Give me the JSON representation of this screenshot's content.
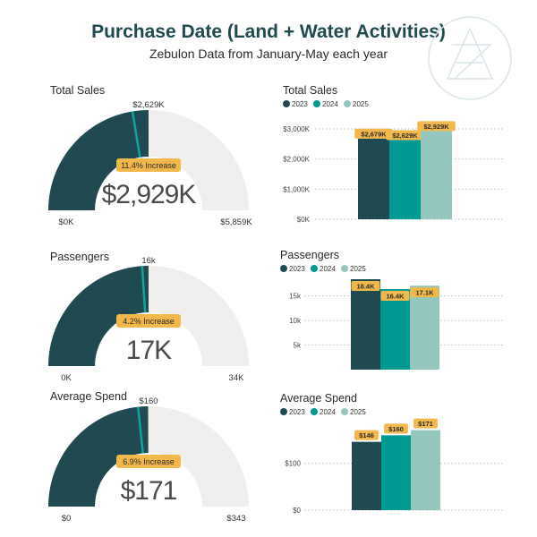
{
  "header": {
    "title": "Purchase Date (Land + Water Activities)",
    "subtitle": "Zebulon Data from January-May each year"
  },
  "colors": {
    "y2023": "#1f4a51",
    "y2024": "#009a93",
    "y2025": "#93c7bd",
    "gauge_bg": "#f1efee",
    "gauge_fill": "#1f4a51",
    "marker": "#0fa59d",
    "badge": "#f2b84b",
    "title": "#1e4a50"
  },
  "chart_data": [
    {
      "type": "gauge",
      "title": "Total Sales",
      "value": 2929,
      "value_label": "$2,929K",
      "min": 0,
      "max": 5859,
      "min_label": "$0K",
      "max_label": "$5,859K",
      "marker_value": 2629,
      "marker_label": "$2,629K",
      "badge": "11.4% Increase"
    },
    {
      "type": "bar",
      "title": "Total Sales",
      "categories": [
        "2023",
        "2024",
        "2025"
      ],
      "values": [
        2679,
        2629,
        2929
      ],
      "data_labels": [
        "$2,679K",
        "$2,629K",
        "$2,929K"
      ],
      "yticks": [
        0,
        1000,
        2000,
        3000
      ],
      "ytick_labels": [
        "$0K",
        "$1,000K",
        "$2,000K",
        "$3,000K"
      ],
      "ylim": [
        0,
        3000
      ],
      "legend": "top-left",
      "grid": true
    },
    {
      "type": "gauge",
      "title": "Passengers",
      "value": 17.1,
      "value_label": "17K",
      "min": 0,
      "max": 34.2,
      "min_label": "0K",
      "max_label": "34K",
      "marker_value": 16.4,
      "marker_label": "16k",
      "badge": "4.2% Increase"
    },
    {
      "type": "bar",
      "title": "Passengers",
      "categories": [
        "2023",
        "2024",
        "2025"
      ],
      "values": [
        18.4,
        16.4,
        17.1
      ],
      "data_labels": [
        "18.4K",
        "16.4K",
        "17.1K"
      ],
      "yticks": [
        5,
        10,
        15
      ],
      "ytick_labels": [
        "5k",
        "10k",
        "15k"
      ],
      "ylim": [
        0,
        18.4
      ],
      "legend": "top-left",
      "grid": true
    },
    {
      "type": "gauge",
      "title": "Average Spend",
      "value": 171,
      "value_label": "$171",
      "min": 0,
      "max": 343,
      "min_label": "$0",
      "max_label": "$343",
      "marker_value": 160,
      "marker_label": "$160",
      "badge": "6.9% Increase"
    },
    {
      "type": "bar",
      "title": "Average Spend",
      "categories": [
        "2023",
        "2024",
        "2025"
      ],
      "values": [
        146,
        160,
        171
      ],
      "data_labels": [
        "$146",
        "$160",
        "$171"
      ],
      "yticks": [
        0,
        100
      ],
      "ytick_labels": [
        "$0",
        "$100"
      ],
      "ylim": [
        0,
        176
      ],
      "legend": "top-left",
      "grid": true
    }
  ]
}
